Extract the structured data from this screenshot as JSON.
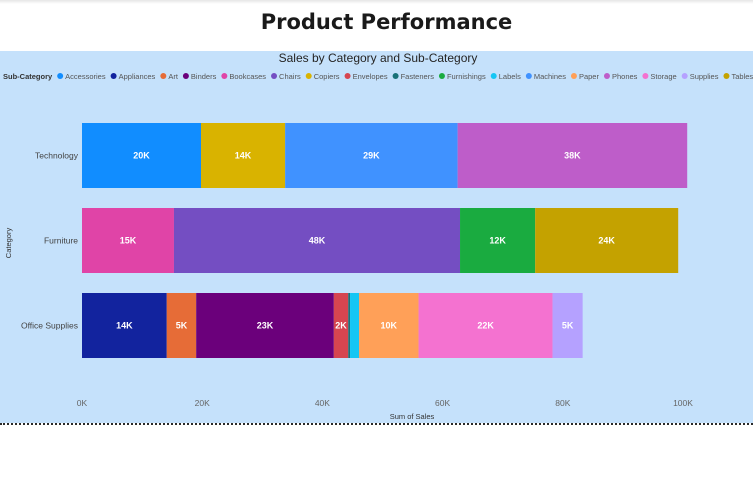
{
  "page": {
    "title": "Product Performance"
  },
  "chart_data": {
    "type": "bar",
    "orientation": "horizontal",
    "stacked": true,
    "title": "Sales by Category and Sub-Category",
    "legend_title": "Sub-Category",
    "legend_position": "top-left",
    "xlabel": "Sum of Sales",
    "ylabel": "Category",
    "xlim": [
      0,
      100000
    ],
    "x_ticks": [
      0,
      20000,
      40000,
      60000,
      80000,
      100000
    ],
    "x_tick_labels": [
      "0K",
      "20K",
      "40K",
      "60K",
      "80K",
      "100K"
    ],
    "grid": false,
    "categories": [
      "Technology",
      "Furniture",
      "Office Supplies"
    ],
    "series": [
      {
        "name": "Accessories",
        "color": "#118dff",
        "values": [
          19800,
          0,
          0
        ],
        "labels": [
          "20K",
          "",
          ""
        ]
      },
      {
        "name": "Appliances",
        "color": "#12239e",
        "values": [
          0,
          0,
          14100
        ],
        "labels": [
          "",
          "",
          "14K"
        ]
      },
      {
        "name": "Art",
        "color": "#e66c37",
        "values": [
          0,
          0,
          4900
        ],
        "labels": [
          "",
          "",
          "5K"
        ]
      },
      {
        "name": "Binders",
        "color": "#6b007b",
        "values": [
          0,
          0,
          22900
        ],
        "labels": [
          "",
          "",
          "23K"
        ]
      },
      {
        "name": "Bookcases",
        "color": "#e044a7",
        "values": [
          0,
          15300,
          0
        ],
        "labels": [
          "",
          "15K",
          ""
        ]
      },
      {
        "name": "Chairs",
        "color": "#744ec2",
        "values": [
          0,
          47600,
          0
        ],
        "labels": [
          "",
          "48K",
          ""
        ]
      },
      {
        "name": "Copiers",
        "color": "#d9b300",
        "values": [
          14000,
          0,
          0
        ],
        "labels": [
          "14K",
          "",
          ""
        ]
      },
      {
        "name": "Envelopes",
        "color": "#d64550",
        "values": [
          0,
          0,
          2400
        ],
        "labels": [
          "",
          "",
          "2K"
        ]
      },
      {
        "name": "Fasteners",
        "color": "#197278",
        "values": [
          0,
          0,
          300
        ],
        "labels": [
          "",
          "",
          ""
        ]
      },
      {
        "name": "Furnishings",
        "color": "#1aab40",
        "values": [
          0,
          12500,
          0
        ],
        "labels": [
          "",
          "12K",
          ""
        ]
      },
      {
        "name": "Labels",
        "color": "#15c6f4",
        "values": [
          0,
          0,
          1500
        ],
        "labels": [
          "",
          "",
          ""
        ]
      },
      {
        "name": "Machines",
        "color": "#4092ff",
        "values": [
          28700,
          0,
          0
        ],
        "labels": [
          "29K",
          "",
          ""
        ]
      },
      {
        "name": "Paper",
        "color": "#ffa058",
        "values": [
          0,
          0,
          9900
        ],
        "labels": [
          "",
          "",
          "10K"
        ]
      },
      {
        "name": "Phones",
        "color": "#be5dc9",
        "values": [
          38200,
          0,
          0
        ],
        "labels": [
          "38K",
          "",
          ""
        ]
      },
      {
        "name": "Storage",
        "color": "#f472d0",
        "values": [
          0,
          0,
          22300
        ],
        "labels": [
          "",
          "",
          "22K"
        ]
      },
      {
        "name": "Supplies",
        "color": "#b5a1ff",
        "values": [
          0,
          0,
          5000
        ],
        "labels": [
          "",
          "",
          "5K"
        ]
      },
      {
        "name": "Tables",
        "color": "#c4a200",
        "values": [
          0,
          23800,
          0
        ],
        "labels": [
          "",
          "24K",
          ""
        ]
      }
    ]
  }
}
